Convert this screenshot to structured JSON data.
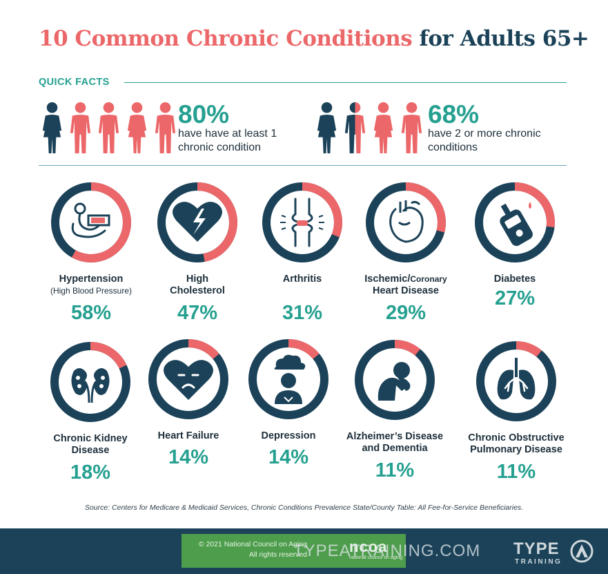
{
  "title": {
    "part1": "10 Common Chronic Conditions",
    "part2": "for Adults 65+"
  },
  "quick_facts": {
    "label": "QUICK FACTS",
    "facts": [
      {
        "pct": "80%",
        "text": "have have at least 1 chronic condition",
        "people_affected": 4,
        "people_total": 5
      },
      {
        "pct": "68%",
        "text": "have 2 or more chronic conditions",
        "people_affected": 3.5,
        "people_total": 5
      }
    ]
  },
  "conditions": [
    {
      "name": "Hypertension",
      "sub": "(High Blood Pressure)",
      "pct": "58%",
      "value": 58,
      "icon": "blood-pressure-cuff-icon"
    },
    {
      "name": "High Cholesterol",
      "pct": "47%",
      "value": 47,
      "icon": "broken-heart-icon"
    },
    {
      "name": "Arthritis",
      "pct": "31%",
      "value": 31,
      "icon": "knee-joint-icon"
    },
    {
      "name_a": "Ischemic/",
      "name_b": "Coronary",
      "name_c": "Heart Disease",
      "pct": "29%",
      "value": 29,
      "icon": "anatomical-heart-icon"
    },
    {
      "name": "Diabetes",
      "pct": "27%",
      "value": 27,
      "icon": "glucose-meter-icon"
    },
    {
      "name": "Chronic Kidney Disease",
      "pct": "18%",
      "value": 18,
      "icon": "kidneys-icon"
    },
    {
      "name": "Heart Failure",
      "pct": "14%",
      "value": 14,
      "icon": "sad-heart-icon"
    },
    {
      "name": "Depression",
      "pct": "14%",
      "value": 14,
      "icon": "person-raincloud-icon"
    },
    {
      "name": "Alzheimer’s Disease and Dementia",
      "pct": "11%",
      "value": 11,
      "icon": "head-in-hands-icon"
    },
    {
      "name": "Chronic Obstructive Pulmonary Disease",
      "pct": "11%",
      "value": 11,
      "icon": "lungs-icon"
    }
  ],
  "colors": {
    "coral": "#ec6769",
    "navy": "#1b4258",
    "teal": "#25a090"
  },
  "source": "Source: Centers for Medicare & Medicaid Services, Chronic Conditions Prevalence State/County Table: All Fee-for-Service Beneficiaries.",
  "footer": {
    "copyright_line1": "© 2021 National Council on Aging",
    "copyright_line2": "All rights reserved",
    "ncoa_logo": "ncoa",
    "ncoa_tagline": "national council on aging",
    "watermark": "TYPEATRAINING.COM",
    "brand_top": "TYPE",
    "brand_bottom": "TRAINING"
  }
}
